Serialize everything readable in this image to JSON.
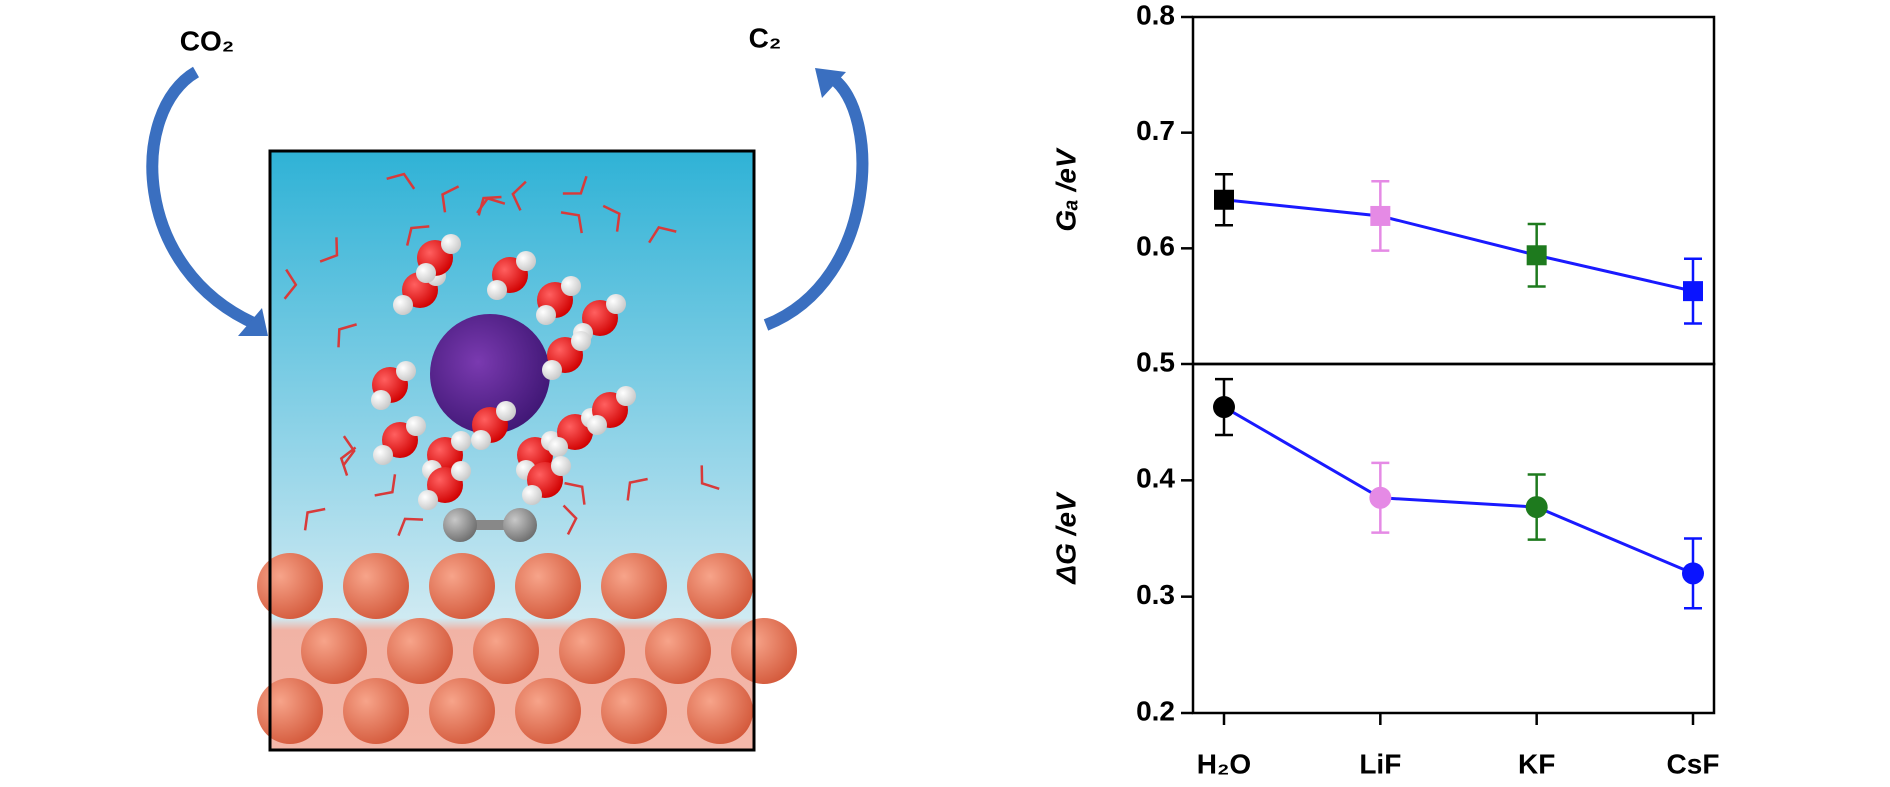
{
  "illustration": {
    "labels": [
      "CO₂",
      "C₂"
    ]
  },
  "chart_data": {
    "type": "line",
    "categories": [
      "H₂O",
      "LiF",
      "KF",
      "CsF"
    ],
    "colors": [
      "#000000",
      "#e58ae5",
      "#1e7a1e",
      "#0a14ff"
    ],
    "line_color": "#1a1aff",
    "panels": [
      {
        "ylabel": "Gₐ /eV",
        "marker": "square",
        "values": [
          0.642,
          0.628,
          0.594,
          0.563
        ],
        "errors": [
          0.022,
          0.03,
          0.027,
          0.028
        ],
        "ylim": [
          0.5,
          0.8
        ],
        "yticks": [
          0.6,
          0.7,
          0.8
        ]
      },
      {
        "ylabel": "ΔG /eV",
        "marker": "circle",
        "values": [
          0.463,
          0.385,
          0.377,
          0.32
        ],
        "errors": [
          0.024,
          0.03,
          0.028,
          0.03
        ],
        "ylim": [
          0.2,
          0.5
        ],
        "yticks": [
          0.2,
          0.3,
          0.4,
          0.5
        ]
      }
    ]
  }
}
